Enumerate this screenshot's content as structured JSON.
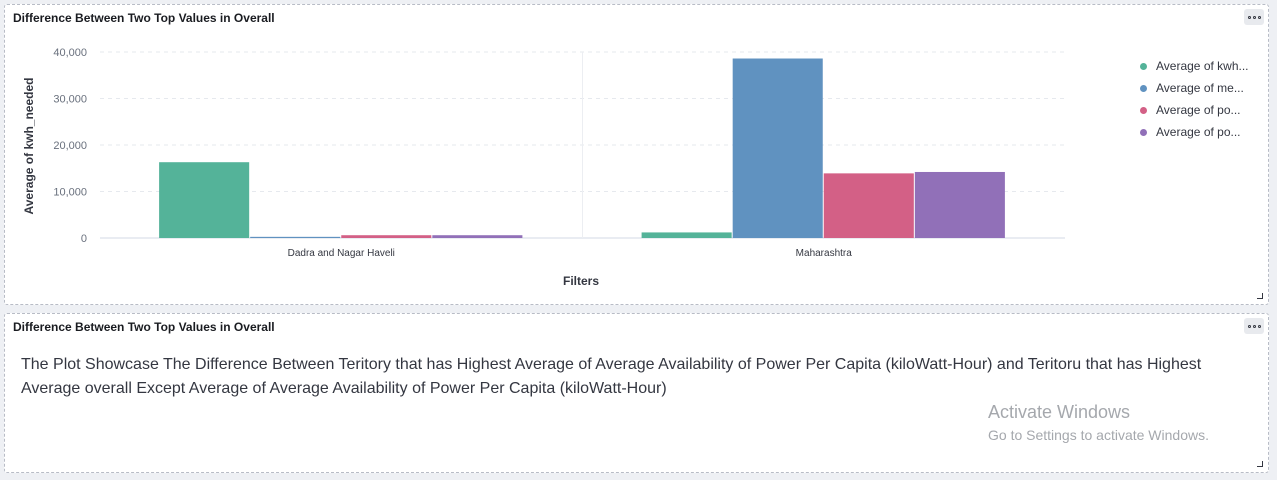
{
  "panel_top": {
    "title": "Difference Between Two Top Values in Overall",
    "menu_icon": "ellipsis-icon"
  },
  "panel_bottom": {
    "title": "Difference Between Two Top Values in Overall",
    "text": "The Plot Showcase The Difference Between Teritory that has Highest Average of Average Availability of Power Per Capita (kiloWatt-Hour) and Teritoru that has Highest Average overall Except Average of Average Availability of Power Per Capita (kiloWatt-Hour)"
  },
  "chart_data": {
    "type": "bar",
    "xlabel": "Filters",
    "ylabel": "Average of kwh_needed",
    "ylim": [
      0,
      40000
    ],
    "yticks": [
      0,
      10000,
      20000,
      30000,
      40000
    ],
    "ytick_labels": [
      "0",
      "10,000",
      "20,000",
      "30,000",
      "40,000"
    ],
    "categories": [
      "Dadra and Nagar Haveli",
      "Maharashtra"
    ],
    "grid": true,
    "legend_position": "right",
    "series": [
      {
        "name": "Average of kwh...",
        "color": "#54b399",
        "values": [
          16300,
          1200
        ]
      },
      {
        "name": "Average of me...",
        "color": "#6092c0",
        "values": [
          250,
          38600
        ]
      },
      {
        "name": "Average of po...",
        "color": "#d36086",
        "values": [
          600,
          13900
        ]
      },
      {
        "name": "Average of po...",
        "color": "#9170b8",
        "values": [
          600,
          14200
        ]
      }
    ]
  },
  "watermark": {
    "line1": "Activate Windows",
    "line2": "Go to Settings to activate Windows."
  }
}
